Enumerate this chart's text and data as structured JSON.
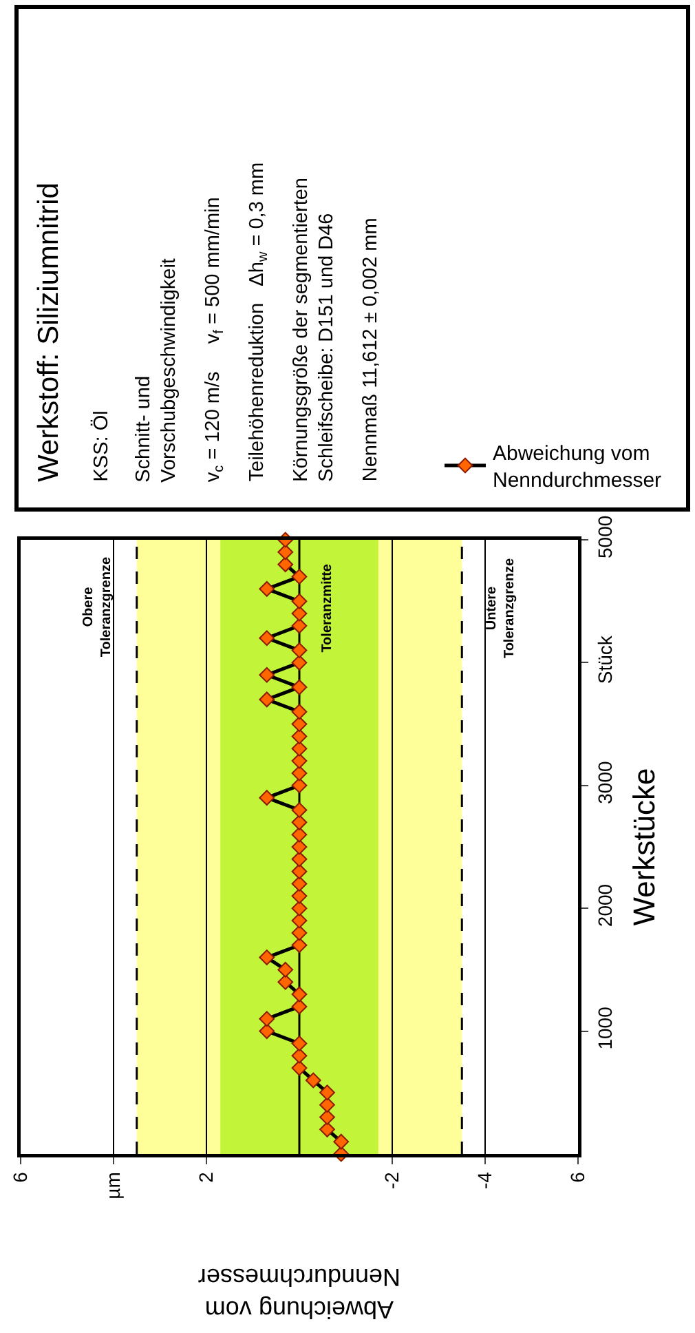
{
  "chart_data": {
    "type": "line",
    "xlabel": "Abweichung vom Nenndurchmesser",
    "ylabel": "Werkstücke",
    "series": [
      {
        "name": "Abweichung vom Nenndurchmesser",
        "color": "#ff6600",
        "x": [
          -0.9,
          -0.9,
          -0.6,
          -0.6,
          -0.6,
          -0.6,
          -0.3,
          0,
          0,
          0,
          0.7,
          0.7,
          0,
          0,
          0.3,
          0.3,
          0.7,
          0,
          0,
          0,
          0,
          0,
          0,
          0,
          0,
          0,
          0,
          0,
          0,
          0.7,
          0,
          0,
          0,
          0,
          0,
          0,
          0,
          0.7,
          0,
          0.7,
          0,
          0,
          0.7,
          0,
          0,
          0,
          0.7,
          0,
          0.3,
          0.3,
          0.3
        ],
        "values": [
          0,
          100,
          200,
          300,
          400,
          500,
          600,
          700,
          800,
          900,
          1000,
          1100,
          1200,
          1300,
          1400,
          1500,
          1600,
          1700,
          1800,
          1900,
          2000,
          2100,
          2200,
          2300,
          2400,
          2500,
          2600,
          2700,
          2800,
          2900,
          3000,
          3100,
          3200,
          3300,
          3400,
          3500,
          3600,
          3700,
          3800,
          3900,
          4000,
          4100,
          4200,
          4300,
          4400,
          4500,
          4600,
          4700,
          4800,
          4900,
          5000
        ]
      }
    ],
    "xlim": [
      6,
      -6
    ],
    "xticks": [
      6,
      {
        "value": 4,
        "label": "µm"
      },
      2,
      -2,
      -4,
      {
        "value": -6,
        "label": "6"
      }
    ],
    "ylim": [
      0,
      5000
    ],
    "yticks": [
      1000,
      2000,
      3000,
      {
        "value": 4000,
        "label": "Stück"
      },
      5000
    ],
    "grid": "x",
    "marker": "diamond",
    "line_style": "solid",
    "legend": "top",
    "bands": [
      {
        "axis": "x",
        "from": -3.5,
        "to": 3.5,
        "color": "#ffff99"
      },
      {
        "axis": "x",
        "from": -1.7,
        "to": 1.7,
        "color": "#c2f53a"
      }
    ],
    "ref_lines": [
      {
        "axis": "x",
        "value": 3.5,
        "label": "Obere Toleranzgrenze",
        "line_style": "dashed"
      },
      {
        "axis": "x",
        "value": 0,
        "label": "Toleranzmitte",
        "line_style": "solid"
      },
      {
        "axis": "x",
        "value": -3.5,
        "label": "Untere Toleranzgrenze",
        "line_style": "dashed"
      }
    ],
    "annotations": [
      "Werkstoff: Siliziumnitrid",
      "KSS: Öl",
      "Schnitt- und Vorschubgeschwindigkeit",
      "v$_{c}$ = 120 m/s     v$_{f}$ = 500 mm/min",
      "Teilehöhenreduktion   Δh$_{w}$ = 0,3 mm",
      "Körnungsgröße der segmentierten Schleifscheibe: D151 und D46",
      "Nennmaß 11,612 ± 0,002 mm"
    ]
  }
}
